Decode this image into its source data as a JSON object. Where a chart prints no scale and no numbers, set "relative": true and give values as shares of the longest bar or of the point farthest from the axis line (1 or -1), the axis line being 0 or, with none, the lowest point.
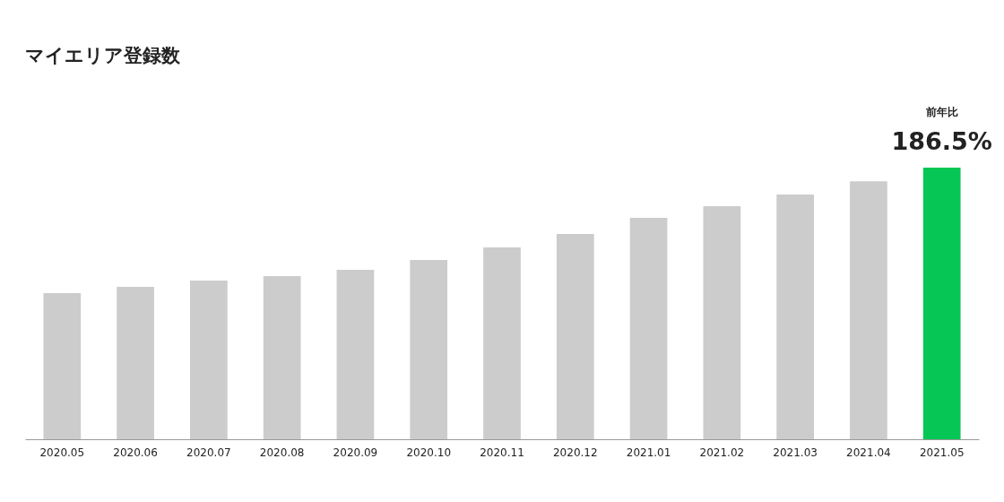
{
  "chart_data": {
    "type": "bar",
    "title": "マイエリア登録数",
    "categories": [
      "2020.05",
      "2020.06",
      "2020.07",
      "2020.08",
      "2020.09",
      "2020.10",
      "2020.11",
      "2020.12",
      "2021.01",
      "2021.02",
      "2021.03",
      "2021.04",
      "2021.05"
    ],
    "values": [
      0.538,
      0.561,
      0.584,
      0.601,
      0.624,
      0.66,
      0.706,
      0.756,
      0.815,
      0.858,
      0.901,
      0.95,
      1
    ],
    "colors": [
      "#cccccc",
      "#cccccc",
      "#cccccc",
      "#cccccc",
      "#cccccc",
      "#cccccc",
      "#cccccc",
      "#cccccc",
      "#cccccc",
      "#cccccc",
      "#cccccc",
      "#cccccc",
      "#06c755"
    ],
    "relative": true,
    "annotations": [
      "前年比",
      {
        "text": "186.5%",
        "x": "2021.05",
        "y": 1
      }
    ]
  }
}
